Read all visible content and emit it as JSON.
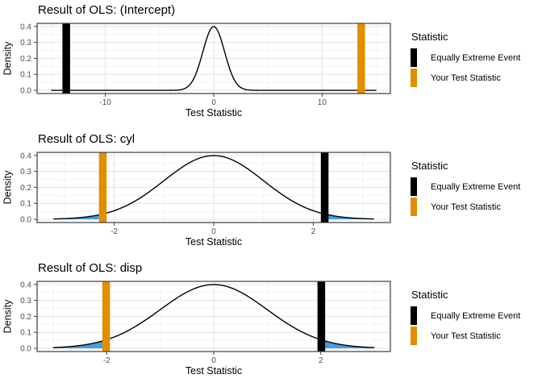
{
  "figure": {
    "legend": {
      "title": "Statistic",
      "items": [
        {
          "label": "Equally Extreme Event",
          "color": "#000000"
        },
        {
          "label": "Your Test Statistic",
          "color": "#DF8F00"
        }
      ]
    },
    "colors": {
      "curve": "#000000",
      "tail_fill": "#4A9DD9",
      "equally_extreme_bar": "#000000",
      "test_statistic_bar": "#DF8F00",
      "grid_major": "#E3E3E3",
      "grid_minor": "#F1F1F1",
      "panel_border": "#3d3d3d",
      "tick_text": "#4D4D4D",
      "panel_background": "#FFFFFF"
    }
  },
  "chart_data": [
    {
      "type": "area",
      "title": "Result of OLS: (Intercept)",
      "xlabel": "Test Statistic",
      "ylabel": "Density",
      "distribution": "standard normal density curve",
      "curve_x_range": [
        -15.0,
        15.0
      ],
      "xlim": [
        -16.3,
        16.3
      ],
      "ylim": [
        -0.02,
        0.419
      ],
      "x_ticks": [
        -10,
        0,
        10
      ],
      "x_minor_ticks": [
        -15,
        -5,
        5,
        15
      ],
      "y_ticks": [
        0.0,
        0.1,
        0.2,
        0.3,
        0.4
      ],
      "y_minor_ticks": [
        0.05,
        0.15,
        0.25,
        0.35
      ],
      "your_test_statistic": 13.61,
      "equally_extreme_event": -13.61,
      "shaded_tails_beyond": 13.61,
      "grid": true,
      "legend_position": "right"
    },
    {
      "type": "area",
      "title": "Result of OLS: cyl",
      "xlabel": "Test Statistic",
      "ylabel": "Density",
      "distribution": "standard normal density curve",
      "curve_x_range": [
        -3.22,
        3.22
      ],
      "xlim": [
        -3.55,
        3.55
      ],
      "ylim": [
        -0.02,
        0.419
      ],
      "x_ticks": [
        -2,
        0,
        2
      ],
      "x_minor_ticks": [
        -3,
        -1,
        1,
        3
      ],
      "y_ticks": [
        0.0,
        0.1,
        0.2,
        0.3,
        0.4
      ],
      "y_minor_ticks": [
        0.05,
        0.15,
        0.25,
        0.35
      ],
      "your_test_statistic": -2.23,
      "equally_extreme_event": 2.23,
      "shaded_tails_beyond": 2.23,
      "grid": true,
      "legend_position": "right"
    },
    {
      "type": "area",
      "title": "Result of OLS: disp",
      "xlabel": "Test Statistic",
      "ylabel": "Density",
      "distribution": "standard normal density curve",
      "curve_x_range": [
        -3.0,
        3.0
      ],
      "xlim": [
        -3.3,
        3.3
      ],
      "ylim": [
        -0.02,
        0.419
      ],
      "x_ticks": [
        -2,
        0,
        2
      ],
      "x_minor_ticks": [
        -3,
        -1,
        1,
        3
      ],
      "y_ticks": [
        0.0,
        0.1,
        0.2,
        0.3,
        0.4
      ],
      "y_minor_ticks": [
        0.05,
        0.15,
        0.25,
        0.35
      ],
      "your_test_statistic": -2.01,
      "equally_extreme_event": 2.01,
      "shaded_tails_beyond": 2.01,
      "grid": true,
      "legend_position": "right"
    }
  ]
}
